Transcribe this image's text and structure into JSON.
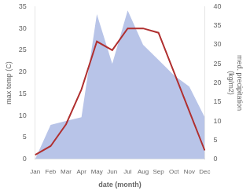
{
  "chart_data": {
    "type": "line",
    "xlabel": "date (month)",
    "ylabel": "max temp (C)",
    "y2label": "med. precipitation\n(kg/m2)",
    "categories": [
      "Jan",
      "Feb",
      "Mar",
      "Apr",
      "May",
      "Jun",
      "Jul",
      "Aug",
      "Sep",
      "Oct",
      "Nov",
      "Dec"
    ],
    "series": [
      {
        "type": "area",
        "axis": "y2",
        "color": "#b8c4e8",
        "values": [
          0,
          9,
          10,
          11,
          38,
          25,
          39,
          30,
          26,
          22,
          19,
          11
        ]
      },
      {
        "type": "line",
        "color": "#b03030",
        "values": [
          1,
          3,
          8,
          16,
          27,
          25,
          30,
          30,
          29,
          20,
          11,
          2
        ]
      }
    ],
    "ylim": [
      0,
      35
    ],
    "yticks": [
      0,
      5,
      10,
      15,
      20,
      25,
      30,
      35
    ],
    "y2lim": [
      0,
      40
    ],
    "y2ticks": [
      0,
      5,
      10,
      15,
      20,
      25,
      30,
      35,
      40
    ],
    "grid": false
  }
}
